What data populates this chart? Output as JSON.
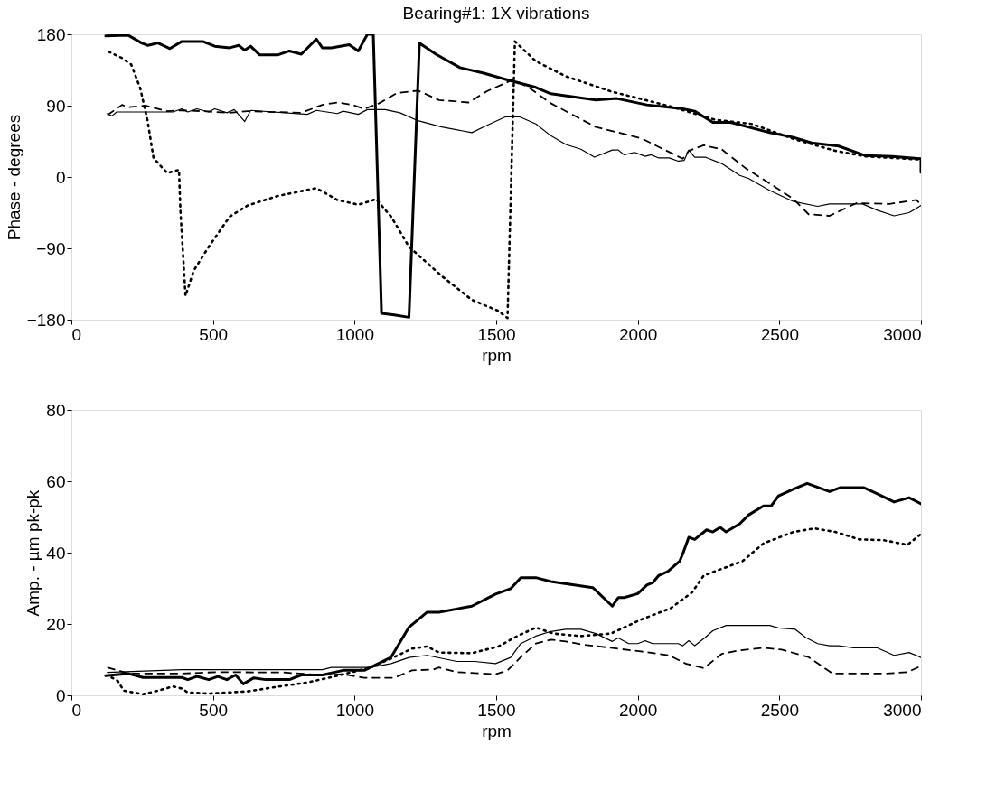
{
  "chart_data": [
    {
      "type": "line",
      "title": "Bearing#1: 1X vibrations",
      "xlabel": "rpm",
      "ylabel": "Phase - degrees",
      "xlim": [
        0,
        3000
      ],
      "xticks": [
        0,
        500,
        1000,
        1500,
        2000,
        2500,
        3000
      ],
      "ylim": [
        -180,
        180
      ],
      "yticks": [
        -180,
        -90,
        0,
        90,
        180
      ],
      "grid": false,
      "marker": "none",
      "series": [
        {
          "color": "#000000",
          "line_style": "solid",
          "x": [
            121,
            200,
            248,
            270,
            306,
            348,
            390,
            464,
            506,
            559,
            591,
            612,
            633,
            665,
            728,
            770,
            812,
            865,
            886,
            918,
            981,
            1013,
            1045,
            1066,
            1095,
            1140,
            1192,
            1229,
            1287,
            1372,
            1456,
            1534,
            1640,
            1693,
            1852,
            1926,
            2032,
            2159,
            2201,
            2265,
            2328,
            2466,
            2550,
            2614,
            2709,
            2804,
            2899,
            3000,
            3000
          ],
          "values": [
            178,
            179,
            169,
            166,
            169,
            162,
            171,
            171,
            165,
            163,
            166,
            160,
            165,
            154,
            154,
            159,
            155,
            174,
            163,
            163,
            167,
            159,
            180,
            180,
            -172,
            -174,
            -177,
            169,
            155,
            138,
            131,
            123,
            113,
            105,
            97,
            99,
            91,
            86,
            83,
            69,
            69,
            56,
            50,
            43,
            39,
            27,
            26,
            23,
            6
          ]
        },
        {
          "color": "#000000",
          "line_style": "solid",
          "x": [
            127,
            143,
            160,
            359,
            390,
            411,
            443,
            485,
            506,
            549,
            575,
            612,
            633,
            833,
            865,
            939,
            960,
            1013,
            1045,
            1108,
            1160,
            1224,
            1308,
            1414,
            1466,
            1534,
            1582,
            1640,
            1693,
            1746,
            1799,
            1847,
            1910,
            1931,
            1952,
            1989,
            2026,
            2047,
            2074,
            2111,
            2143,
            2164,
            2180,
            2201,
            2238,
            2296,
            2360,
            2392,
            2466,
            2550,
            2635,
            2677,
            2794,
            2846,
            2905,
            2958,
            3000
          ],
          "values": [
            80,
            77,
            82,
            82,
            86,
            82,
            86,
            82,
            86,
            81,
            85,
            70,
            84,
            79,
            84,
            80,
            83,
            79,
            85,
            85,
            81,
            71,
            63,
            56,
            65,
            76,
            76,
            67,
            52,
            41,
            35,
            25,
            34,
            34,
            28,
            31,
            26,
            28,
            24,
            24,
            20,
            21,
            34,
            25,
            25,
            17,
            2,
            -2,
            -17,
            -31,
            -37,
            -34,
            -34,
            -42,
            -49,
            -45,
            -36
          ]
        },
        {
          "color": "#000000",
          "line_style": "dashed",
          "x": [
            127,
            179,
            200,
            264,
            338,
            390,
            464,
            559,
            622,
            812,
            886,
            939,
            992,
            1034,
            1087,
            1150,
            1224,
            1298,
            1403,
            1466,
            1561,
            1619,
            1693,
            1852,
            2011,
            2159,
            2180,
            2233,
            2296,
            2381,
            2487,
            2550,
            2603,
            2677,
            2772,
            2889,
            2984,
            3000
          ],
          "values": [
            78,
            91,
            88,
            90,
            83,
            84,
            83,
            81,
            83,
            81,
            91,
            94,
            91,
            86,
            93,
            106,
            109,
            97,
            94,
            108,
            123,
            112,
            93,
            63,
            49,
            23,
            33,
            40,
            35,
            11,
            -13,
            -28,
            -47,
            -49,
            -33,
            -34,
            -29,
            -35
          ]
        },
        {
          "color": "#000000",
          "line_style": "dotted",
          "x": [
            132,
            179,
            211,
            243,
            269,
            290,
            338,
            380,
            385,
            403,
            432,
            485,
            559,
            622,
            728,
            865,
            939,
            1013,
            1076,
            1129,
            1192,
            1308,
            1414,
            1508,
            1540,
            1566,
            1640,
            1746,
            1905,
            2116,
            2275,
            2402,
            2550,
            2698,
            2804,
            3000
          ],
          "values": [
            158,
            150,
            142,
            112,
            71,
            24,
            5,
            9,
            -42,
            -150,
            -118,
            -88,
            -50,
            -36,
            -24,
            -14,
            -29,
            -35,
            -28,
            -50,
            -88,
            -125,
            -155,
            -169,
            -178,
            171,
            146,
            127,
            108,
            89,
            72,
            67,
            48,
            33,
            26,
            22
          ]
        }
      ]
    },
    {
      "type": "line",
      "xlabel": "rpm",
      "ylabel": "Amp. - µm pk-pk",
      "xlim": [
        0,
        3000
      ],
      "xticks": [
        0,
        500,
        1000,
        1500,
        2000,
        2500,
        3000
      ],
      "ylim": [
        0,
        80
      ],
      "yticks": [
        0,
        20,
        40,
        60,
        80
      ],
      "grid": false,
      "marker": "none",
      "series": [
        {
          "color": "#000000",
          "line_style": "solid",
          "x": [
            121,
            200,
            253,
            390,
            411,
            443,
            485,
            517,
            549,
            580,
            607,
            644,
            686,
            770,
            812,
            886,
            960,
            1034,
            1066,
            1129,
            1192,
            1256,
            1298,
            1414,
            1498,
            1551,
            1587,
            1640,
            1693,
            1841,
            1910,
            1931,
            1952,
            2000,
            2032,
            2053,
            2074,
            2106,
            2148,
            2159,
            2180,
            2201,
            2243,
            2265,
            2291,
            2312,
            2360,
            2392,
            2444,
            2471,
            2497,
            2550,
            2598,
            2677,
            2714,
            2799,
            2846,
            2905,
            2958,
            3000
          ],
          "values": [
            5.5,
            6.1,
            5,
            5,
            4.4,
            5.3,
            4.4,
            5.3,
            4.4,
            5.7,
            3.2,
            4.9,
            4.4,
            4.4,
            5.7,
            5.7,
            7,
            7,
            8.2,
            10.7,
            19.1,
            23.3,
            23.3,
            25,
            28.4,
            29.9,
            33,
            33,
            31.9,
            30.2,
            25,
            27.4,
            27.4,
            28.5,
            30.9,
            31.6,
            33.6,
            34.7,
            37.6,
            39.7,
            44.3,
            43.7,
            46.4,
            45.8,
            47.1,
            45.8,
            48.1,
            50.6,
            53.1,
            53.1,
            55.9,
            57.8,
            59.4,
            57.1,
            58.2,
            58.2,
            56.5,
            54.2,
            55.4,
            53.7
          ]
        },
        {
          "color": "#000000",
          "line_style": "solid",
          "x": [
            127,
            390,
            886,
            918,
            1055,
            1129,
            1192,
            1256,
            1361,
            1424,
            1498,
            1551,
            1587,
            1640,
            1693,
            1746,
            1799,
            1852,
            1910,
            1931,
            1968,
            2000,
            2026,
            2053,
            2143,
            2159,
            2180,
            2201,
            2238,
            2265,
            2312,
            2466,
            2497,
            2556,
            2593,
            2635,
            2677,
            2709,
            2762,
            2846,
            2905,
            2958,
            3000
          ],
          "values": [
            6.4,
            7.2,
            7.2,
            7.8,
            7.8,
            8.9,
            10.6,
            11.2,
            9.5,
            9.5,
            8.9,
            10.6,
            14.5,
            16.6,
            17.9,
            18.5,
            18.5,
            17.3,
            15.1,
            16.1,
            14.5,
            14.5,
            15.3,
            14.5,
            14.5,
            13.9,
            15.3,
            13.9,
            16.2,
            18.1,
            19.6,
            19.6,
            18.9,
            18.5,
            16.2,
            14.5,
            13.9,
            13.9,
            13.3,
            13.3,
            11.2,
            12,
            10.6
          ]
        },
        {
          "color": "#000000",
          "line_style": "dashed",
          "x": [
            127,
            164,
            200,
            390,
            517,
            749,
            886,
            960,
            1034,
            1140,
            1203,
            1277,
            1298,
            1361,
            1498,
            1540,
            1587,
            1640,
            1693,
            1746,
            1799,
            1905,
            2011,
            2111,
            2169,
            2233,
            2296,
            2360,
            2444,
            2508,
            2603,
            2688,
            2878,
            2952,
            3000
          ],
          "values": [
            7.8,
            7,
            6.1,
            6.1,
            6.5,
            6.4,
            5.7,
            5.9,
            4.9,
            4.9,
            7,
            7.2,
            7.8,
            6.5,
            5.9,
            7,
            10.7,
            14.5,
            15.6,
            15.1,
            14.3,
            13.3,
            12.3,
            11.2,
            8.9,
            7.6,
            11.6,
            12.6,
            13.3,
            12.8,
            10.7,
            6.1,
            6.1,
            6.5,
            8.2
          ]
        },
        {
          "color": "#000000",
          "line_style": "dotted",
          "x": [
            142,
            164,
            185,
            253,
            306,
            359,
            390,
            411,
            485,
            622,
            728,
            833,
            907,
            971,
            1055,
            1129,
            1203,
            1256,
            1298,
            1414,
            1508,
            1572,
            1640,
            1703,
            1799,
            1905,
            2011,
            2116,
            2191,
            2233,
            2370,
            2444,
            2550,
            2624,
            2698,
            2783,
            2868,
            2952,
            3000
          ],
          "values": [
            5,
            4,
            1.3,
            0.3,
            1.3,
            2.5,
            1.9,
            0.8,
            0.5,
            1.1,
            2.4,
            3.6,
            4.9,
            6.1,
            7.8,
            10.3,
            13.1,
            13.7,
            12,
            11.8,
            13.7,
            16.5,
            19,
            17.3,
            16.6,
            17.3,
            21.2,
            24.4,
            28.8,
            33.6,
            37.6,
            42.6,
            45.8,
            46.8,
            45.8,
            43.7,
            43.5,
            42.2,
            45.2
          ]
        }
      ]
    }
  ]
}
